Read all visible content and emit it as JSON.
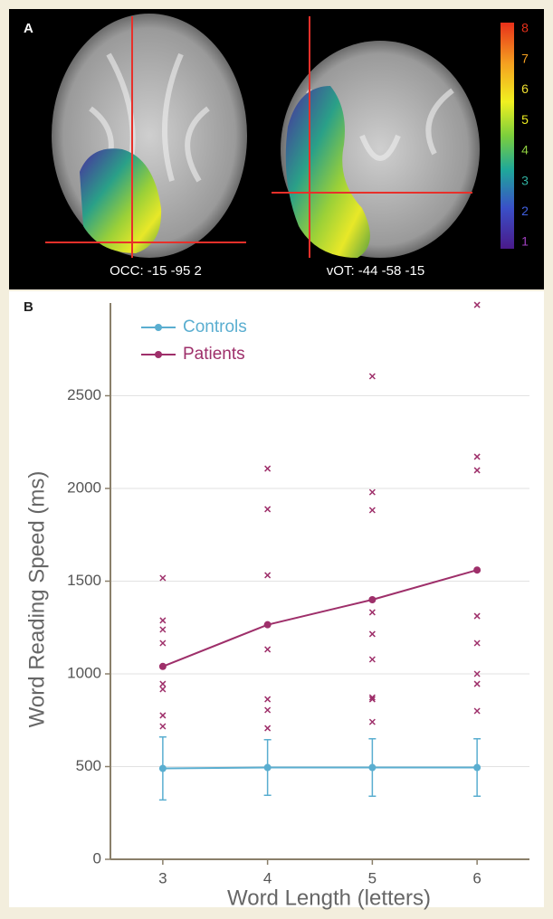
{
  "panel_a": {
    "label": "A",
    "captions": [
      "OCC: -15 -95 2",
      "vOT: -44 -58 -15"
    ],
    "colorbar_ticks": [
      1,
      2,
      3,
      4,
      5,
      6,
      7,
      8
    ]
  },
  "panel_b_label": "B",
  "chart_data": {
    "type": "line",
    "x_label": "Word Length (letters)",
    "y_label": "Word Reading Speed (ms)",
    "x": [
      3,
      4,
      5,
      6
    ],
    "xlim": [
      2.5,
      6.5
    ],
    "xticks": [
      3,
      4,
      5,
      6
    ],
    "ylim": [
      0,
      3000
    ],
    "yticks": [
      0,
      500,
      1000,
      1500,
      2000,
      2500
    ],
    "grid": true,
    "legend": "upper left",
    "series": [
      {
        "name": "Controls",
        "color": "#5aaed0",
        "values": [
          490,
          495,
          495,
          495
        ],
        "errors": [
          170,
          150,
          155,
          155
        ]
      },
      {
        "name": "Patients",
        "color": "#9e2f6a",
        "values": [
          1040,
          1265,
          1400,
          1560
        ],
        "individual": [
          [
            1517,
            1288,
            1239,
            1166,
            946,
            917,
            776,
            717
          ],
          [
            2107,
            1888,
            1532,
            1132,
            863,
            805,
            707
          ],
          [
            2605,
            1980,
            1883,
            1332,
            1215,
            1078,
            873,
            863,
            741
          ],
          [
            2990,
            2171,
            2098,
            1312,
            1166,
            1000,
            946,
            800
          ]
        ]
      }
    ]
  }
}
